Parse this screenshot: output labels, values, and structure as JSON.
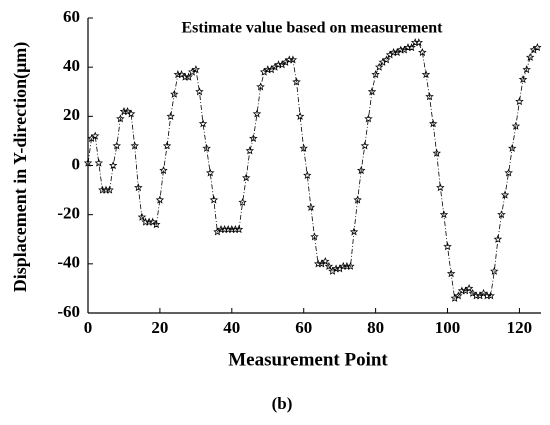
{
  "chart_data": {
    "type": "line",
    "title": "Estimate value based on measurement",
    "xlabel": "Measurement Point",
    "ylabel": "Displacement in Y-direction(μm)",
    "caption": "(b)",
    "x": [
      0,
      1,
      2,
      3,
      4,
      5,
      6,
      7,
      8,
      9,
      10,
      11,
      12,
      13,
      14,
      15,
      16,
      17,
      18,
      19,
      20,
      21,
      22,
      23,
      24,
      25,
      26,
      27,
      28,
      29,
      30,
      31,
      32,
      33,
      34,
      35,
      36,
      37,
      38,
      39,
      40,
      41,
      42,
      43,
      44,
      45,
      46,
      47,
      48,
      49,
      50,
      51,
      52,
      53,
      54,
      55,
      56,
      57,
      58,
      59,
      60,
      61,
      62,
      63,
      64,
      65,
      66,
      67,
      68,
      69,
      70,
      71,
      72,
      73,
      74,
      75,
      76,
      77,
      78,
      79,
      80,
      81,
      82,
      83,
      84,
      85,
      86,
      87,
      88,
      89,
      90,
      91,
      92,
      93,
      94,
      95,
      96,
      97,
      98,
      99,
      100,
      101,
      102,
      103,
      104,
      105,
      106,
      107,
      108,
      109,
      110,
      111,
      112,
      113,
      114,
      115,
      116,
      117,
      118,
      119,
      120,
      121,
      122,
      123,
      124,
      125
    ],
    "series": [
      {
        "name": "Estimate",
        "color": "#000000",
        "values": [
          1,
          11,
          12,
          1,
          -10,
          -10,
          -10,
          0,
          8,
          19,
          22,
          22,
          21,
          8,
          -9,
          -21,
          -23,
          -23,
          -23,
          -24,
          -14,
          -2,
          8,
          20,
          29,
          37,
          37,
          36,
          36,
          38,
          39,
          30,
          17,
          7,
          -3,
          -14,
          -27,
          -26,
          -26,
          -26,
          -26,
          -26,
          -26,
          -15,
          -5,
          6,
          11,
          21,
          32,
          38,
          39,
          39,
          40,
          41,
          41,
          42,
          43,
          43,
          34,
          20,
          7,
          -4,
          -17,
          -29,
          -40,
          -40,
          -39,
          -41,
          -43,
          -42,
          -42,
          -41,
          -41,
          -41,
          -27,
          -14,
          -2,
          8,
          19,
          30,
          37,
          40,
          42,
          43,
          45,
          46,
          46,
          47,
          47,
          48,
          48,
          50,
          50,
          46,
          37,
          28,
          17,
          5,
          -9,
          -20,
          -33,
          -44,
          -54,
          -53,
          -51,
          -51,
          -50,
          -52,
          -53,
          -53,
          -52,
          -53,
          -53,
          -43,
          -30,
          -20,
          -12,
          -3,
          7,
          16,
          26,
          35,
          39,
          44,
          47,
          48
        ]
      }
    ],
    "xlim": [
      0,
      126
    ],
    "xticks": [
      0,
      20,
      40,
      60,
      80,
      100,
      120
    ],
    "ylim": [
      -60,
      60
    ],
    "yticks": [
      -60,
      -40,
      -20,
      0,
      20,
      40,
      60
    ]
  }
}
